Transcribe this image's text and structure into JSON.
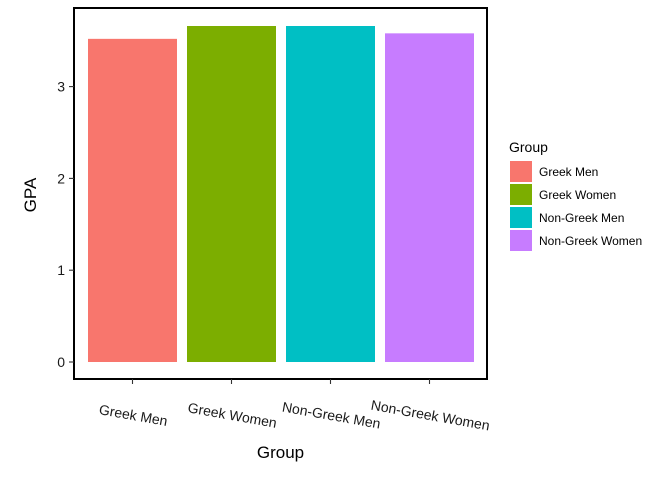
{
  "chart_data": {
    "type": "bar",
    "categories": [
      "Greek Men",
      "Greek Women",
      "Non-Greek Men",
      "Non-Greek Women"
    ],
    "values": [
      3.52,
      3.66,
      3.66,
      3.58
    ],
    "colors": [
      "#F8766D",
      "#7CAE00",
      "#00BFC4",
      "#C77CFF"
    ],
    "xlabel": "Group",
    "ylabel": "GPA",
    "ylim": [
      0,
      3.66
    ],
    "yticks": [
      0,
      1,
      2,
      3
    ],
    "grid": false,
    "legend": {
      "title": "Group",
      "position": "right",
      "labels": [
        "Greek Men",
        "Greek Women",
        "Non-Greek Men",
        "Non-Greek Women"
      ]
    }
  }
}
